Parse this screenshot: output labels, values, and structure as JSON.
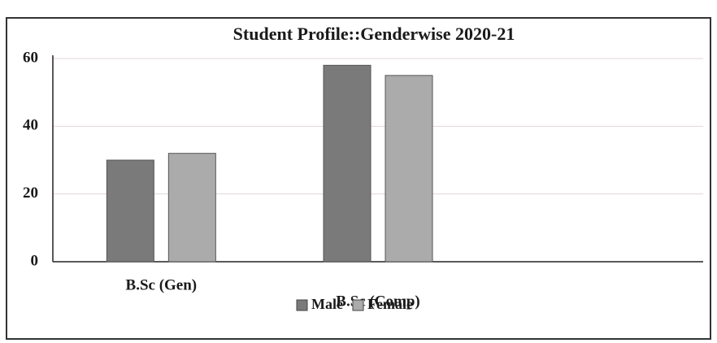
{
  "chart_data": {
    "type": "bar",
    "title": "Student Profile::Genderwise  2020-21",
    "categories": [
      "B.Sc (Gen)",
      "B.Sc (Comp)"
    ],
    "series": [
      {
        "name": "Male",
        "color": "#7a7a7a",
        "values": [
          30,
          58
        ]
      },
      {
        "name": "Female",
        "color": "#ababab",
        "values": [
          32,
          55
        ]
      }
    ],
    "ylim": [
      0,
      60
    ],
    "yticks": [
      0,
      20,
      40,
      60
    ],
    "grid": true,
    "legend": "bottom"
  }
}
